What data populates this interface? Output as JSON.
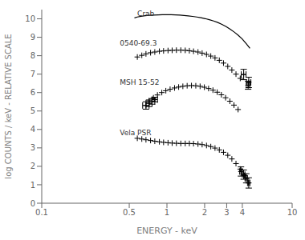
{
  "chart_data": {
    "type": "scatter",
    "log": "x",
    "grid": false,
    "xlabel": "ENERGY - keV",
    "ylabel": "log COUNTS / keV - RELATIVE SCALE",
    "xlim": [
      0.1,
      10
    ],
    "xticks": [
      0.1,
      0.5,
      1,
      2,
      3,
      4,
      10
    ],
    "ylim": [
      0,
      10.5
    ],
    "yticks": [
      0,
      1,
      2,
      3,
      4,
      5,
      6,
      7,
      8,
      9,
      10
    ],
    "series": [
      {
        "type": "line",
        "line_style": "solid",
        "color": "#000000",
        "x": [
          0.55,
          0.58,
          0.62,
          0.67,
          0.72,
          0.78,
          0.85,
          0.92,
          1.0,
          1.08,
          1.17,
          1.27,
          1.37,
          1.48,
          1.6,
          1.73,
          1.87,
          2.02,
          2.18,
          2.36,
          2.55,
          2.75,
          2.97,
          3.2,
          3.45,
          3.72,
          4.0,
          4.3,
          4.6
        ],
        "values": [
          10.05,
          10.1,
          10.14,
          10.17,
          10.19,
          10.2,
          10.21,
          10.22,
          10.22,
          10.22,
          10.21,
          10.2,
          10.18,
          10.16,
          10.13,
          10.1,
          10.06,
          10.01,
          9.95,
          9.88,
          9.8,
          9.7,
          9.58,
          9.44,
          9.28,
          9.1,
          8.9,
          8.65,
          8.4
        ]
      },
      {
        "type": "scatter",
        "marker": "+",
        "color": "#000000",
        "x": [
          0.58,
          0.63,
          0.68,
          0.74,
          0.8,
          0.87,
          0.94,
          1.02,
          1.1,
          1.19,
          1.29,
          1.4,
          1.51,
          1.63,
          1.77,
          1.91,
          2.07,
          2.24,
          2.42,
          2.62,
          2.83,
          3.06,
          3.3,
          3.56,
          3.85
        ],
        "values": [
          7.93,
          8.02,
          8.1,
          8.16,
          8.2,
          8.24,
          8.26,
          8.28,
          8.29,
          8.3,
          8.3,
          8.29,
          8.27,
          8.24,
          8.2,
          8.14,
          8.07,
          7.98,
          7.88,
          7.75,
          7.6,
          7.42,
          7.22,
          7.0,
          6.77
        ]
      },
      {
        "type": "scatter",
        "marker": "+",
        "color": "#000000",
        "x": [
          4.1,
          4.5
        ],
        "values": [
          6.98,
          6.55
        ],
        "x_error": [
          0.18,
          0.18
        ],
        "y_error": [
          0.28,
          0.28
        ]
      },
      {
        "type": "scatter",
        "marker": "+",
        "color": "#000000",
        "x": [
          0.72,
          0.78,
          0.84,
          0.91,
          0.98,
          1.06,
          1.15,
          1.24,
          1.34,
          1.45,
          1.57,
          1.7,
          1.84,
          1.99,
          2.15,
          2.33,
          2.52,
          2.72,
          2.94,
          3.18,
          3.43,
          3.7
        ],
        "values": [
          5.55,
          5.72,
          5.87,
          6.0,
          6.1,
          6.18,
          6.25,
          6.3,
          6.34,
          6.37,
          6.38,
          6.37,
          6.34,
          6.29,
          6.22,
          6.13,
          6.02,
          5.88,
          5.72,
          5.53,
          5.32,
          5.08
        ]
      },
      {
        "type": "scatter",
        "marker": "+",
        "color": "#000000",
        "x": [
          0.68,
          0.72,
          0.76,
          0.8
        ],
        "values": [
          5.3,
          5.42,
          5.52,
          5.62
        ],
        "x_error": [
          0.04,
          0.04,
          0.04,
          0.04
        ],
        "y_error": [
          0.2,
          0.18,
          0.15,
          0.12
        ]
      },
      {
        "type": "scatter",
        "marker": "+",
        "color": "#000000",
        "x": [
          4.45
        ],
        "values": [
          6.4
        ],
        "x_error": [
          0.15
        ],
        "y_error": [
          0.22
        ]
      },
      {
        "type": "scatter",
        "marker": "+",
        "color": "#000000",
        "x": [
          0.58,
          0.63,
          0.68,
          0.74,
          0.8,
          0.87,
          0.94,
          1.02,
          1.1,
          1.19,
          1.29,
          1.4,
          1.51,
          1.63,
          1.77,
          1.91,
          2.07,
          2.24,
          2.42,
          2.62,
          2.83,
          3.06,
          3.3,
          3.56,
          3.85,
          4.15,
          4.47
        ],
        "values": [
          3.52,
          3.48,
          3.44,
          3.4,
          3.36,
          3.33,
          3.3,
          3.28,
          3.26,
          3.25,
          3.24,
          3.24,
          3.24,
          3.23,
          3.21,
          3.18,
          3.13,
          3.07,
          2.99,
          2.89,
          2.76,
          2.6,
          2.4,
          2.15,
          1.85,
          1.5,
          1.1
        ]
      },
      {
        "type": "scatter",
        "marker": "+",
        "color": "#000000",
        "x": [
          3.9,
          4.1,
          4.3,
          4.5
        ],
        "values": [
          1.72,
          1.55,
          1.35,
          1.1
        ],
        "x_error": [
          0.1,
          0.1,
          0.1,
          0.1
        ],
        "y_error": [
          0.25,
          0.25,
          0.25,
          0.28
        ]
      }
    ],
    "annotations": [
      {
        "text": "Crab",
        "x": 0.58,
        "y": 10.05
      },
      {
        "text": "0540-69.3",
        "x": 0.42,
        "y": 8.45
      },
      {
        "text": "MSH 15-52",
        "x": 0.42,
        "y": 6.35
      },
      {
        "text": "Vela PSR",
        "x": 0.42,
        "y": 3.6
      }
    ]
  }
}
